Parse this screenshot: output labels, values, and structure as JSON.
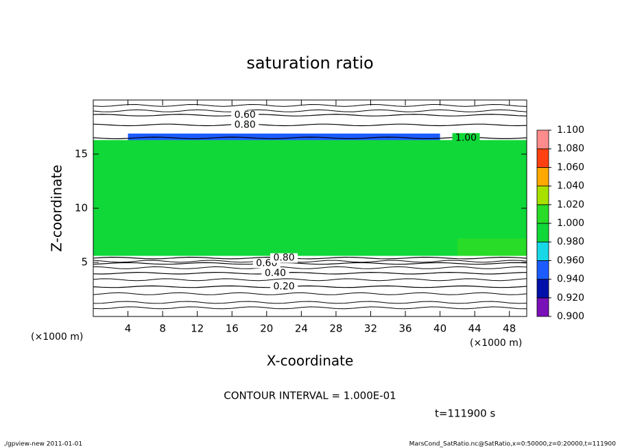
{
  "chart_data": {
    "type": "contour",
    "title": "saturation ratio",
    "x_label": "X-coordinate",
    "y_label": "Z-coordinate",
    "x_unit": "(×1000 m)",
    "xlim": [
      0,
      50
    ],
    "xticks": [
      4,
      8,
      12,
      16,
      20,
      24,
      28,
      32,
      36,
      40,
      44,
      48
    ],
    "ylim": [
      0,
      20
    ],
    "yticks": [
      5,
      10,
      15
    ],
    "colorbar": {
      "levels": [
        {
          "value": 0.9,
          "label": "0.900"
        },
        {
          "value": 0.92,
          "label": "0.920"
        },
        {
          "value": 0.94,
          "label": "0.940"
        },
        {
          "value": 0.96,
          "label": "0.960"
        },
        {
          "value": 0.98,
          "label": "0.980"
        },
        {
          "value": 1.0,
          "label": "1.000"
        },
        {
          "value": 1.02,
          "label": "1.020"
        },
        {
          "value": 1.04,
          "label": "1.040"
        },
        {
          "value": 1.06,
          "label": "1.060"
        },
        {
          "value": 1.08,
          "label": "1.080"
        },
        {
          "value": 1.1,
          "label": "1.100"
        }
      ],
      "colors": [
        "#7a10b8",
        "#0010a8",
        "#1c5cff",
        "#18d8e8",
        "#10d838",
        "#28dc28",
        "#a8e000",
        "#ffa800",
        "#ff4010",
        "#ff8c8c"
      ]
    },
    "shaded": [
      {
        "x": [
          0,
          50
        ],
        "z": [
          5.6,
          16.3
        ],
        "value": 0.99
      },
      {
        "x": [
          4,
          40
        ],
        "z": [
          16.3,
          16.9
        ],
        "value": 0.95
      },
      {
        "x": [
          42,
          50
        ],
        "z": [
          5.6,
          7.2
        ],
        "value": 1.01
      }
    ],
    "contours": [
      {
        "value": 0.2,
        "label": "0.20",
        "z": 2.75,
        "x": 22
      },
      {
        "value": 0.4,
        "label": "0.40",
        "z": 4.0,
        "x": 21
      },
      {
        "value": 0.6,
        "label": "0.60",
        "z": 4.9,
        "x": 20
      },
      {
        "value": 0.8,
        "label": "0.80",
        "z": 5.4,
        "x": 22
      },
      {
        "value": 0.6,
        "label": "0.60",
        "z": 18.6,
        "x": 17.5
      },
      {
        "value": 0.8,
        "label": "0.80",
        "z": 17.7,
        "x": 17.5
      },
      {
        "value": 1.0,
        "label": "1.00",
        "z": 16.5,
        "x": 43
      }
    ],
    "contour_interval": "CONTOUR INTERVAL = 1.000E-01",
    "time_label": "t=111900 s",
    "footer_left": "./gpview-new  2011-01-01",
    "footer_right": "MarsCond_SatRatio.nc@SatRatio,x=0:50000,z=0:20000,t=111900"
  }
}
